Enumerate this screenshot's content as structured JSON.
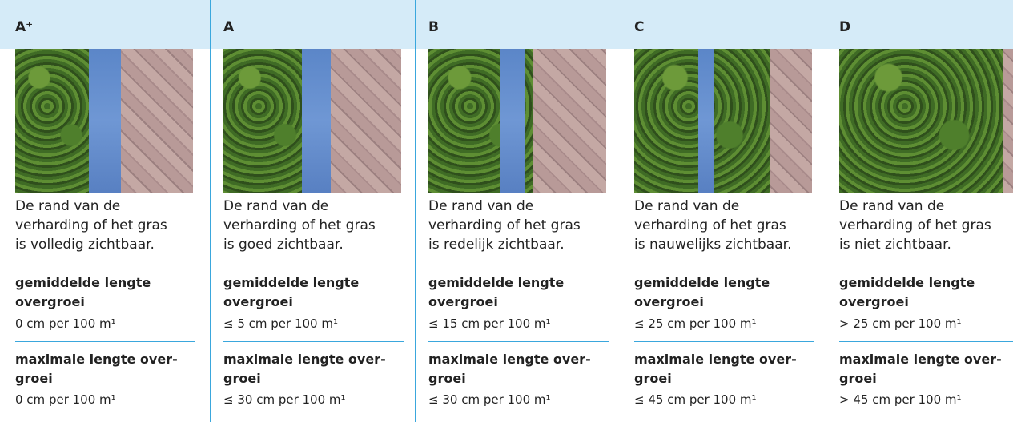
{
  "columns": [
    {
      "grade": "A⁺",
      "description": [
        "De rand van de",
        "verharding of het gras",
        "is volledig zichtbaar."
      ],
      "avg_label": [
        "gemiddelde lengte",
        "overgroei"
      ],
      "avg_value": "0 cm per 100 m¹",
      "max_label": [
        "maximale lengte over-",
        "groei"
      ],
      "max_value": "0 cm per 100 m¹"
    },
    {
      "grade": "A",
      "description": [
        "De rand van de",
        "verharding of het gras",
        "is goed zichtbaar."
      ],
      "avg_label": [
        "gemiddelde lengte",
        "overgroei"
      ],
      "avg_value": "≤ 5 cm per 100 m¹",
      "max_label": [
        "maximale lengte over-",
        "groei"
      ],
      "max_value": "≤ 30 cm per 100 m¹"
    },
    {
      "grade": "B",
      "description": [
        "De rand van de",
        "verharding of het gras",
        "is redelijk zichtbaar."
      ],
      "avg_label": [
        "gemiddelde lengte",
        "overgroei"
      ],
      "avg_value": "≤ 15 cm per 100 m¹",
      "max_label": [
        "maximale lengte over-",
        "groei"
      ],
      "max_value": "≤ 30 cm per 100 m¹"
    },
    {
      "grade": "C",
      "description": [
        "De rand van de",
        "verharding of het gras",
        "is nauwelijks zichtbaar."
      ],
      "avg_label": [
        "gemiddelde lengte",
        "overgroei"
      ],
      "avg_value": "≤ 25 cm per 100 m¹",
      "max_label": [
        "maximale lengte over-",
        "groei"
      ],
      "max_value": "≤ 45 cm per 100 m¹"
    },
    {
      "grade": "D",
      "description": [
        "De rand van de",
        "verharding of het gras",
        "is niet zichtbaar."
      ],
      "avg_label": [
        "gemiddelde lengte",
        "overgroei"
      ],
      "avg_value": "> 25 cm per 100 m¹",
      "max_label": [
        "maximale lengte over-",
        "groei"
      ],
      "max_value": "> 45 cm per 100 m¹"
    }
  ]
}
